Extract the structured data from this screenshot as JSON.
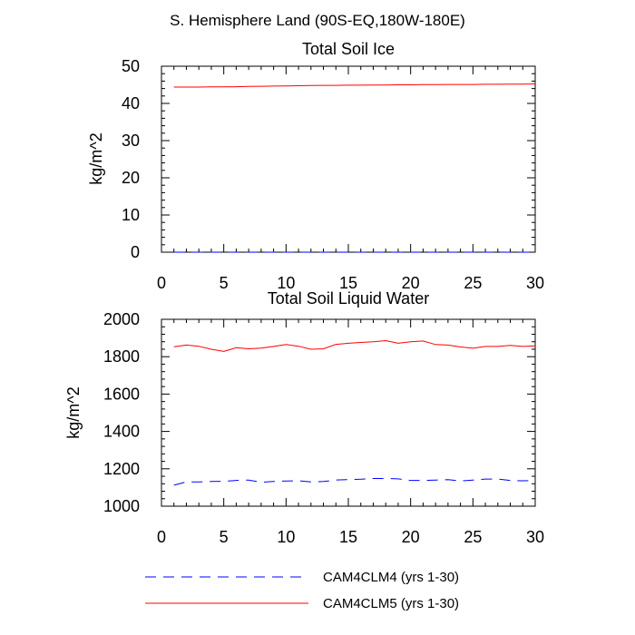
{
  "figure_title": "S. Hemisphere Land (90S-EQ,180W-180E)",
  "colors": {
    "CAM4CLM4": "#0000ff",
    "CAM4CLM5": "#ff0000",
    "axis": "#000000"
  },
  "legend": [
    {
      "label": "CAM4CLM4 (yrs 1-30)",
      "color": "#0000ff",
      "dash": true
    },
    {
      "label": "CAM4CLM5 (yrs 1-30)",
      "color": "#ff0000",
      "dash": false
    }
  ],
  "chart_data": [
    {
      "type": "line",
      "title": "Total Soil Ice",
      "xlabel": "",
      "ylabel": "kg/m^2",
      "xlim": [
        0,
        30
      ],
      "ylim": [
        0,
        50
      ],
      "xticks": [
        0,
        5,
        10,
        15,
        20,
        25,
        30
      ],
      "yticks": [
        0,
        10,
        20,
        30,
        40,
        50
      ],
      "x": [
        1,
        2,
        3,
        4,
        5,
        6,
        7,
        8,
        9,
        10,
        11,
        12,
        13,
        14,
        15,
        16,
        17,
        18,
        19,
        20,
        21,
        22,
        23,
        24,
        25,
        26,
        27,
        28,
        29,
        30
      ],
      "series": [
        {
          "name": "CAM4CLM4 (yrs 1-30)",
          "color": "#0000ff",
          "dashed": true,
          "values": [
            0,
            0,
            0,
            0,
            0,
            0,
            0,
            0,
            0,
            0,
            0,
            0,
            0,
            0,
            0,
            0,
            0,
            0,
            0,
            0,
            0,
            0,
            0,
            0,
            0,
            0,
            0,
            0,
            0,
            0
          ]
        },
        {
          "name": "CAM4CLM5 (yrs 1-30)",
          "color": "#ff0000",
          "dashed": false,
          "values": [
            44.4,
            44.4,
            44.4,
            44.45,
            44.45,
            44.5,
            44.55,
            44.6,
            44.65,
            44.7,
            44.75,
            44.8,
            44.85,
            44.85,
            44.9,
            44.9,
            44.95,
            44.95,
            45.0,
            45.0,
            45.05,
            45.05,
            45.1,
            45.1,
            45.1,
            45.15,
            45.15,
            45.2,
            45.2,
            45.25
          ]
        }
      ]
    },
    {
      "type": "line",
      "title": "Total Soil Liquid Water",
      "xlabel": "",
      "ylabel": "kg/m^2",
      "xlim": [
        0,
        30
      ],
      "ylim": [
        1000,
        2000
      ],
      "xticks": [
        0,
        5,
        10,
        15,
        20,
        25,
        30
      ],
      "yticks": [
        1000,
        1200,
        1400,
        1600,
        1800,
        2000
      ],
      "x": [
        1,
        2,
        3,
        4,
        5,
        6,
        7,
        8,
        9,
        10,
        11,
        12,
        13,
        14,
        15,
        16,
        17,
        18,
        19,
        20,
        21,
        22,
        23,
        24,
        25,
        26,
        27,
        28,
        29,
        30
      ],
      "series": [
        {
          "name": "CAM4CLM4 (yrs 1-30)",
          "color": "#0000ff",
          "dashed": true,
          "values": [
            1112,
            1130,
            1130,
            1132,
            1133,
            1138,
            1140,
            1128,
            1132,
            1135,
            1136,
            1130,
            1132,
            1140,
            1142,
            1144,
            1148,
            1148,
            1146,
            1138,
            1138,
            1140,
            1142,
            1135,
            1140,
            1145,
            1145,
            1138,
            1136,
            1138
          ]
        },
        {
          "name": "CAM4CLM5 (yrs 1-30)",
          "color": "#ff0000",
          "dashed": false,
          "values": [
            1853,
            1862,
            1856,
            1840,
            1828,
            1848,
            1842,
            1846,
            1855,
            1865,
            1856,
            1840,
            1842,
            1866,
            1872,
            1876,
            1880,
            1886,
            1872,
            1880,
            1884,
            1865,
            1862,
            1852,
            1845,
            1855,
            1855,
            1860,
            1855,
            1858
          ]
        }
      ]
    }
  ]
}
